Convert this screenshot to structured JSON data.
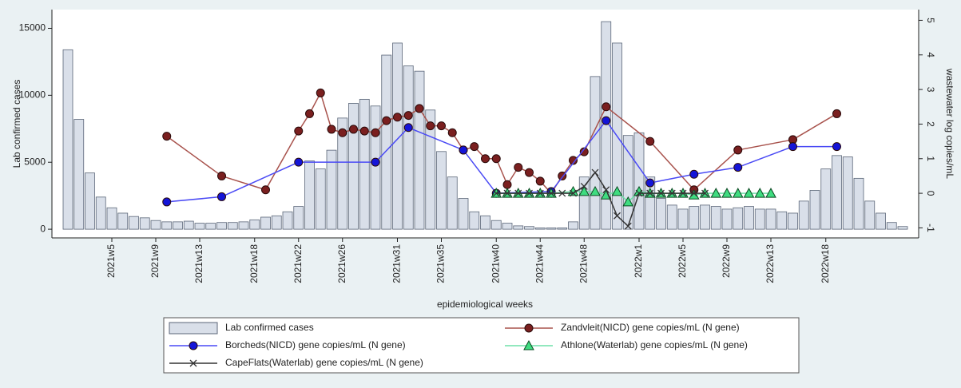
{
  "chart_data": {
    "type": "combo",
    "x_label": "epidemiological weeks",
    "y_label": "Lab confirmed cases",
    "y2_label": "wastewater log copies/mL",
    "categories": [
      null,
      null,
      null,
      null,
      "2021w5",
      null,
      null,
      null,
      "2021w9",
      null,
      null,
      null,
      "2021w13",
      null,
      null,
      null,
      null,
      "2021w18",
      null,
      null,
      null,
      "2021w22",
      null,
      null,
      null,
      "2021w26",
      null,
      null,
      null,
      null,
      "2021w31",
      null,
      null,
      null,
      "2021w35",
      null,
      null,
      null,
      null,
      "2021w40",
      null,
      null,
      null,
      "2021w44",
      null,
      null,
      null,
      "2021w48",
      null,
      null,
      null,
      null,
      "2022w1",
      null,
      null,
      null,
      "2022w5",
      null,
      null,
      null,
      "2022w9",
      null,
      null,
      null,
      "2022w13",
      null,
      null,
      null,
      null,
      "2022w18",
      null,
      null,
      null,
      null,
      null,
      null,
      null
    ],
    "ylim": [
      -650,
      16400
    ],
    "yticks": [
      0,
      5000,
      10000,
      15000
    ],
    "y2lim": [
      -1.29,
      5.31
    ],
    "y2ticks": [
      -1,
      0,
      1,
      2,
      3,
      4,
      5
    ],
    "series": [
      {
        "name": "Lab confirmed cases",
        "type": "bar",
        "color": "#d9dfe9",
        "edge": "#5b6678",
        "values": [
          13400,
          8200,
          4200,
          2400,
          1600,
          1200,
          950,
          850,
          650,
          550,
          550,
          600,
          450,
          450,
          500,
          500,
          550,
          700,
          900,
          1000,
          1300,
          1700,
          5100,
          4500,
          5900,
          8300,
          9400,
          9700,
          9200,
          13000,
          13900,
          12200,
          11800,
          8900,
          5800,
          3900,
          2300,
          1300,
          1000,
          650,
          450,
          250,
          200,
          100,
          100,
          100,
          550,
          3900,
          11400,
          15500,
          13900,
          7000,
          7200,
          3900,
          2300,
          1800,
          1500,
          1700,
          1800,
          1700,
          1500,
          1600,
          1700,
          1500,
          1500,
          1300,
          1200,
          2100,
          2900,
          4500,
          5500,
          5400,
          3800,
          2100,
          1200,
          500,
          200
        ]
      },
      {
        "name": "Zandvleit(NICD) gene copies/mL (N gene)",
        "type": "line",
        "axis": "y2",
        "marker": "circle",
        "color": "#a8524c",
        "marker_fill": "#7a1f1f",
        "values": [
          null,
          null,
          null,
          null,
          null,
          null,
          null,
          null,
          null,
          1.65,
          null,
          null,
          null,
          null,
          0.5,
          null,
          null,
          null,
          0.1,
          null,
          null,
          1.8,
          2.3,
          2.9,
          1.85,
          1.75,
          1.85,
          1.8,
          1.75,
          2.1,
          2.2,
          2.25,
          2.45,
          1.95,
          1.95,
          1.75,
          1.25,
          1.35,
          1.0,
          1.0,
          0.25,
          0.75,
          0.6,
          0.35,
          0,
          0.5,
          0.95,
          1.2,
          null,
          2.5,
          null,
          null,
          null,
          1.5,
          null,
          null,
          null,
          0.1,
          null,
          null,
          null,
          1.25,
          null,
          null,
          null,
          null,
          1.55,
          null,
          null,
          null,
          2.3,
          null,
          null,
          null,
          null,
          null,
          null
        ]
      },
      {
        "name": "Borcheds(NICD) gene copies/mL (N gene)",
        "type": "line",
        "axis": "y2",
        "marker": "circle",
        "color": "#4a4af5",
        "marker_fill": "#1414d8",
        "values": [
          null,
          null,
          null,
          null,
          null,
          null,
          null,
          null,
          null,
          -0.25,
          null,
          null,
          null,
          null,
          -0.1,
          null,
          null,
          null,
          null,
          null,
          null,
          0.9,
          null,
          null,
          null,
          null,
          null,
          null,
          0.9,
          null,
          null,
          1.9,
          null,
          null,
          null,
          null,
          1.25,
          null,
          null,
          0,
          null,
          null,
          null,
          null,
          0.05,
          null,
          null,
          null,
          null,
          2.1,
          null,
          null,
          null,
          0.3,
          null,
          null,
          null,
          0.55,
          null,
          null,
          null,
          0.75,
          null,
          null,
          null,
          null,
          1.35,
          null,
          null,
          null,
          1.35,
          null,
          null,
          null,
          null,
          null,
          null
        ]
      },
      {
        "name": "Athlone(Waterlab) gene copies/mL (N gene)",
        "type": "line",
        "axis": "y2",
        "marker": "triangle",
        "color": "#6fe0a8",
        "marker_fill": "#3fdc80",
        "values": [
          null,
          null,
          null,
          null,
          null,
          null,
          null,
          null,
          null,
          null,
          null,
          null,
          null,
          null,
          null,
          null,
          null,
          null,
          null,
          null,
          null,
          null,
          null,
          null,
          null,
          null,
          null,
          null,
          null,
          null,
          null,
          null,
          null,
          null,
          null,
          null,
          null,
          null,
          null,
          0,
          0,
          0,
          0,
          0,
          0,
          null,
          0.05,
          0.05,
          0.05,
          -0.05,
          0.05,
          -0.25,
          0.05,
          0,
          0,
          0,
          0,
          -0.05,
          0,
          0,
          0,
          0,
          0,
          0,
          0,
          null,
          null,
          null,
          null,
          null,
          null,
          null,
          null,
          null,
          null,
          null,
          null
        ]
      },
      {
        "name": "CapeFlats(Waterlab) gene copies/mL (N gene)",
        "type": "line",
        "axis": "y2",
        "marker": "x",
        "color": "#333333",
        "marker_fill": "#333333",
        "values": [
          null,
          null,
          null,
          null,
          null,
          null,
          null,
          null,
          null,
          null,
          null,
          null,
          null,
          null,
          null,
          null,
          null,
          null,
          null,
          null,
          null,
          null,
          null,
          null,
          null,
          null,
          null,
          null,
          null,
          null,
          null,
          null,
          null,
          null,
          null,
          null,
          null,
          null,
          null,
          0,
          0,
          0,
          0,
          0,
          0,
          0,
          0,
          0.2,
          0.6,
          0.1,
          -0.65,
          -0.95,
          0,
          0,
          0,
          0,
          0,
          0,
          0,
          null,
          null,
          null,
          null,
          null,
          null,
          null,
          null,
          null,
          null,
          null,
          null,
          null,
          null,
          null,
          null,
          null,
          null
        ]
      }
    ]
  }
}
